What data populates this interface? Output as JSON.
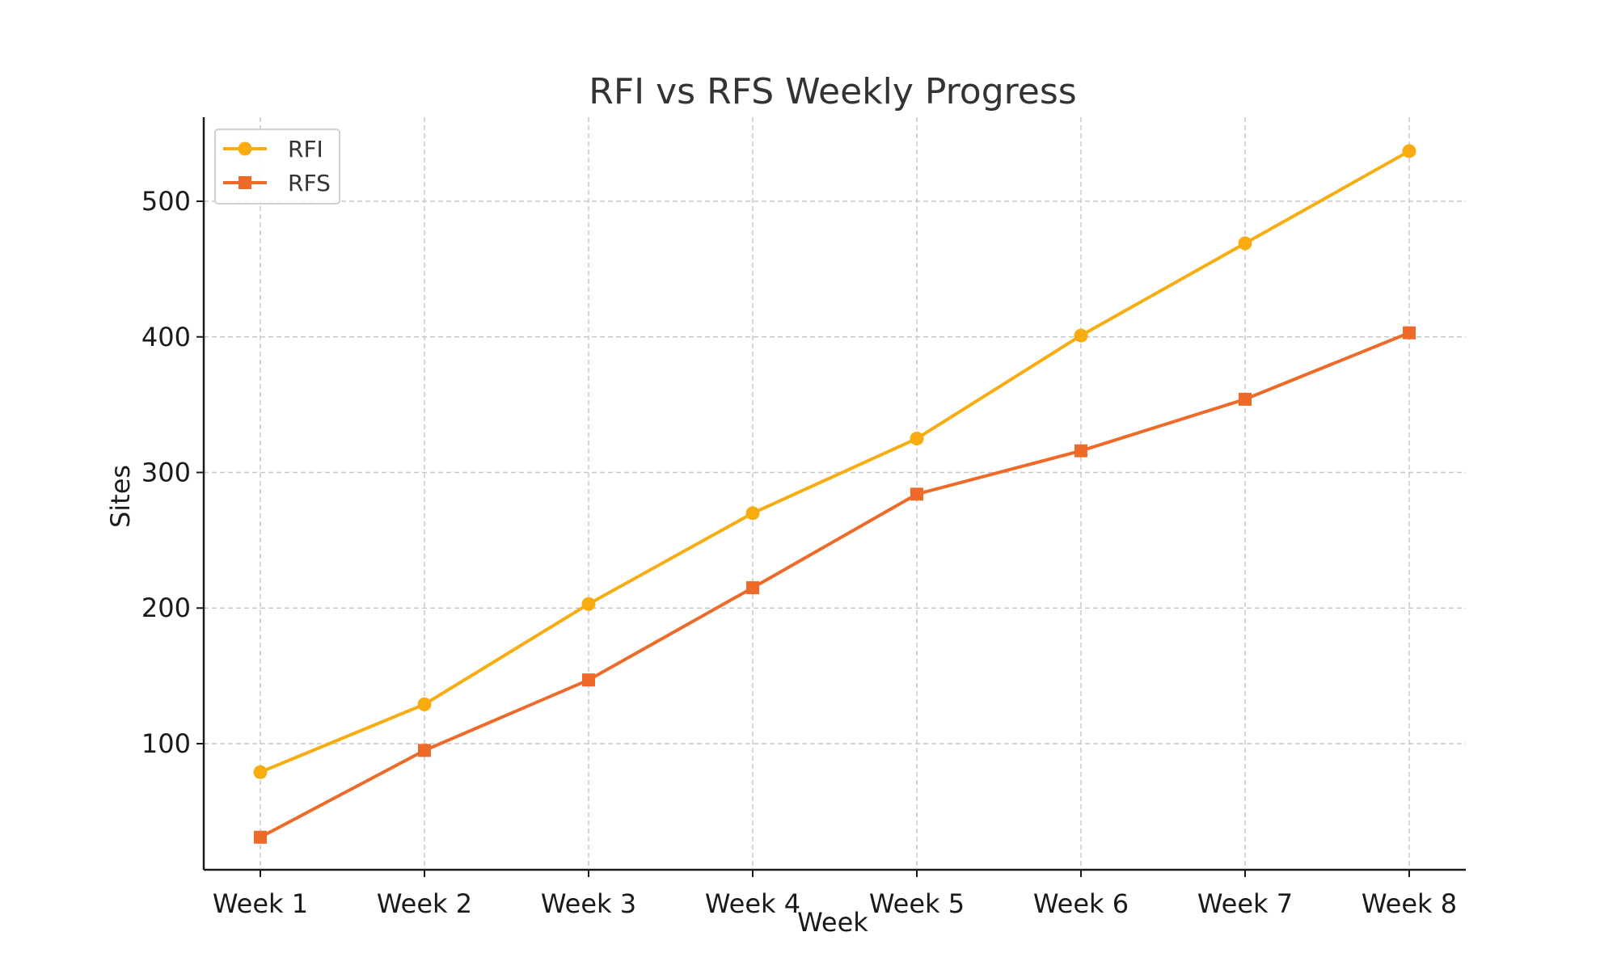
{
  "chart_data": {
    "type": "line",
    "title": "RFI vs RFS Weekly Progress",
    "xlabel": "Week",
    "ylabel": "Sites",
    "categories": [
      "Week 1",
      "Week 2",
      "Week 3",
      "Week 4",
      "Week 5",
      "Week 6",
      "Week 7",
      "Week 8"
    ],
    "series": [
      {
        "name": "RFI",
        "color": "#F9AC10",
        "marker": "circle",
        "values": [
          79,
          129,
          203,
          270,
          325,
          401,
          469,
          537
        ]
      },
      {
        "name": "RFS",
        "color": "#EE6A28",
        "marker": "square",
        "values": [
          31,
          95,
          147,
          215,
          284,
          316,
          354,
          403
        ]
      }
    ],
    "ylim": [
      7,
      562
    ],
    "yticks": [
      100,
      200,
      300,
      400,
      500
    ],
    "grid": true,
    "legend_position": "top-left"
  }
}
